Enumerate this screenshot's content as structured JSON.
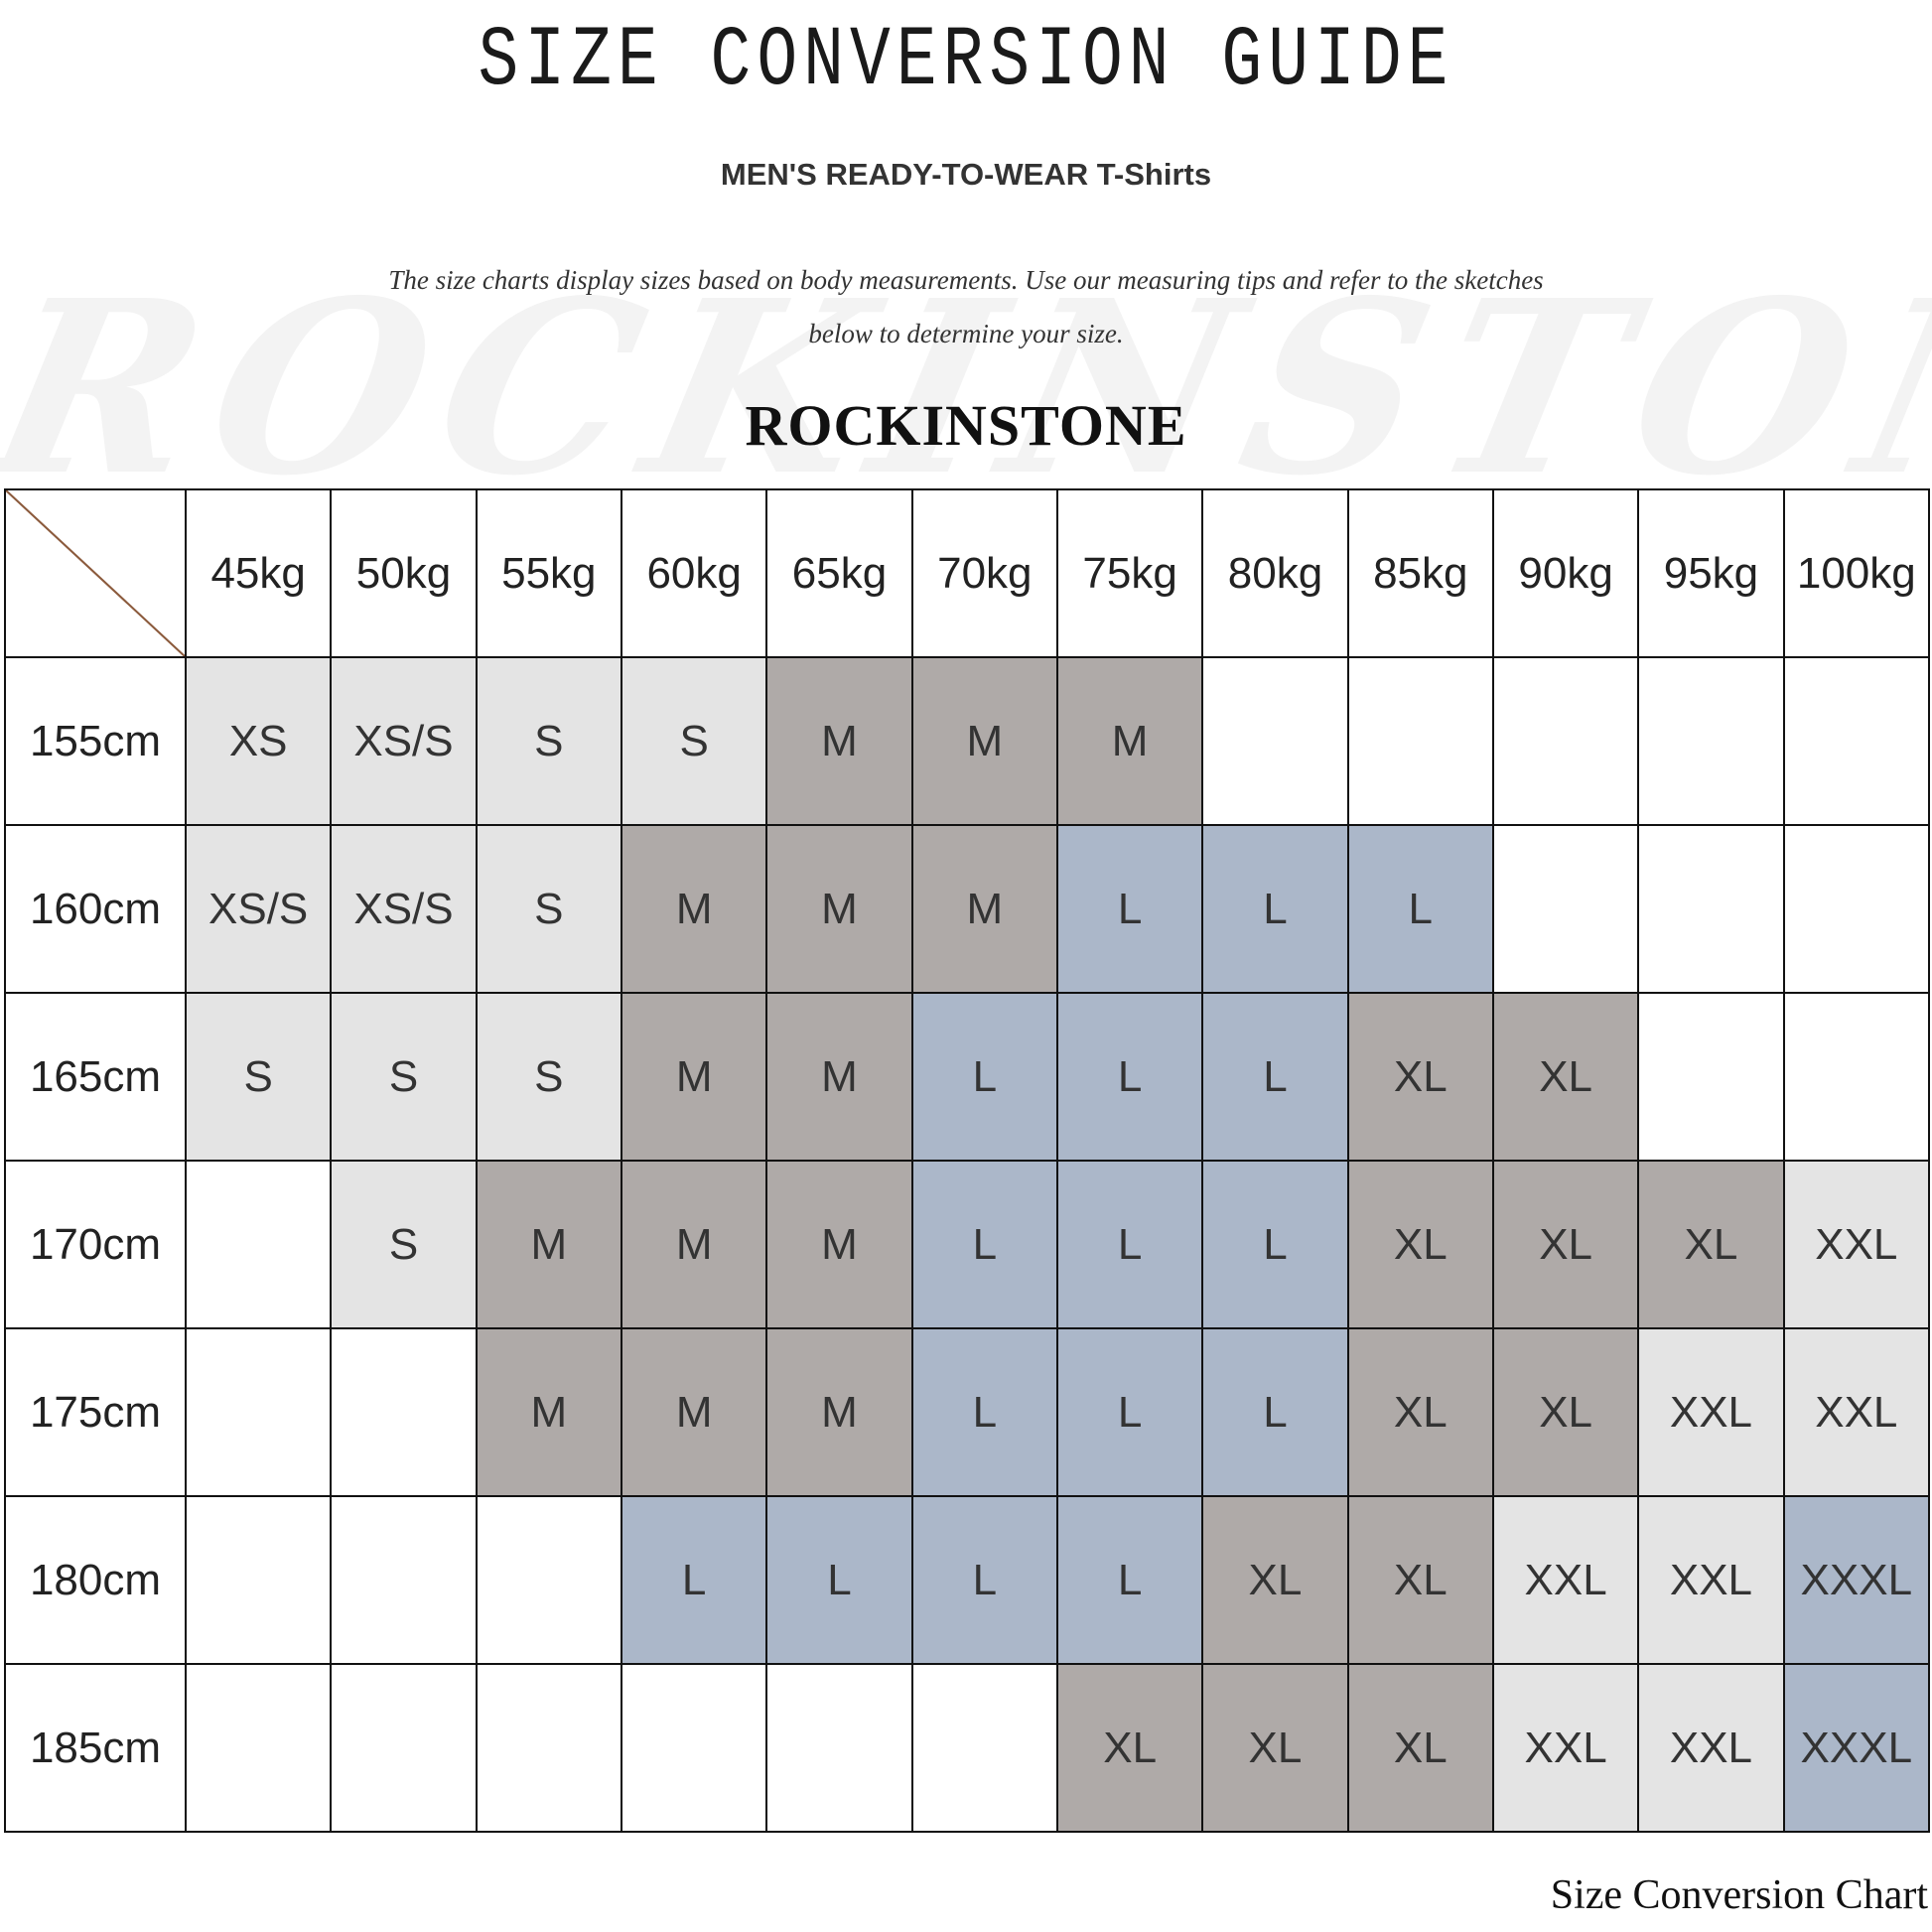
{
  "header": {
    "title": "SIZE CONVERSION GUIDE",
    "subtitle": "MEN'S READY-TO-WEAR T-Shirts",
    "intro_line1": "The size charts display sizes based on body measurements. Use our measuring tips and refer to the sketches",
    "intro_line2": "below to determine your size.",
    "watermark": "ROCKINSTONE",
    "brand": "ROCKINSTONE"
  },
  "footer": "Size Conversion Chart",
  "chart_data": {
    "type": "table",
    "columns": [
      "45kg",
      "50kg",
      "55kg",
      "60kg",
      "65kg",
      "70kg",
      "75kg",
      "80kg",
      "85kg",
      "90kg",
      "95kg",
      "100kg"
    ],
    "rows": [
      {
        "height": "155cm",
        "sizes": [
          "XS",
          "XS/S",
          "S",
          "S",
          "M",
          "M",
          "M",
          "",
          "",
          "",
          "",
          ""
        ]
      },
      {
        "height": "160cm",
        "sizes": [
          "XS/S",
          "XS/S",
          "S",
          "M",
          "M",
          "M",
          "L",
          "L",
          "L",
          "",
          "",
          ""
        ]
      },
      {
        "height": "165cm",
        "sizes": [
          "S",
          "S",
          "S",
          "M",
          "M",
          "L",
          "L",
          "L",
          "XL",
          "XL",
          "",
          ""
        ]
      },
      {
        "height": "170cm",
        "sizes": [
          "",
          "S",
          "M",
          "M",
          "M",
          "L",
          "L",
          "L",
          "XL",
          "XL",
          "XL",
          "XXL"
        ]
      },
      {
        "height": "175cm",
        "sizes": [
          "",
          "",
          "M",
          "M",
          "M",
          "L",
          "L",
          "L",
          "XL",
          "XL",
          "XXL",
          "XXL"
        ]
      },
      {
        "height": "180cm",
        "sizes": [
          "",
          "",
          "",
          "L",
          "L",
          "L",
          "L",
          "XL",
          "XL",
          "XXL",
          "XXL",
          "XXXL"
        ]
      },
      {
        "height": "185cm",
        "sizes": [
          "",
          "",
          "",
          "",
          "",
          "",
          "XL",
          "XL",
          "XL",
          "XXL",
          "XXL",
          "XXXL"
        ]
      }
    ],
    "size_colors": {
      "XS": "#e4e4e4",
      "XS/S": "#e4e4e4",
      "S": "#e4e4e4",
      "XXL": "#e4e4e4",
      "M": "#afaaa8",
      "XL": "#afaaa8",
      "L": "#abb7c9",
      "XXXL": "#abb7c9"
    },
    "corner_line_color": "#8b5a3c"
  }
}
